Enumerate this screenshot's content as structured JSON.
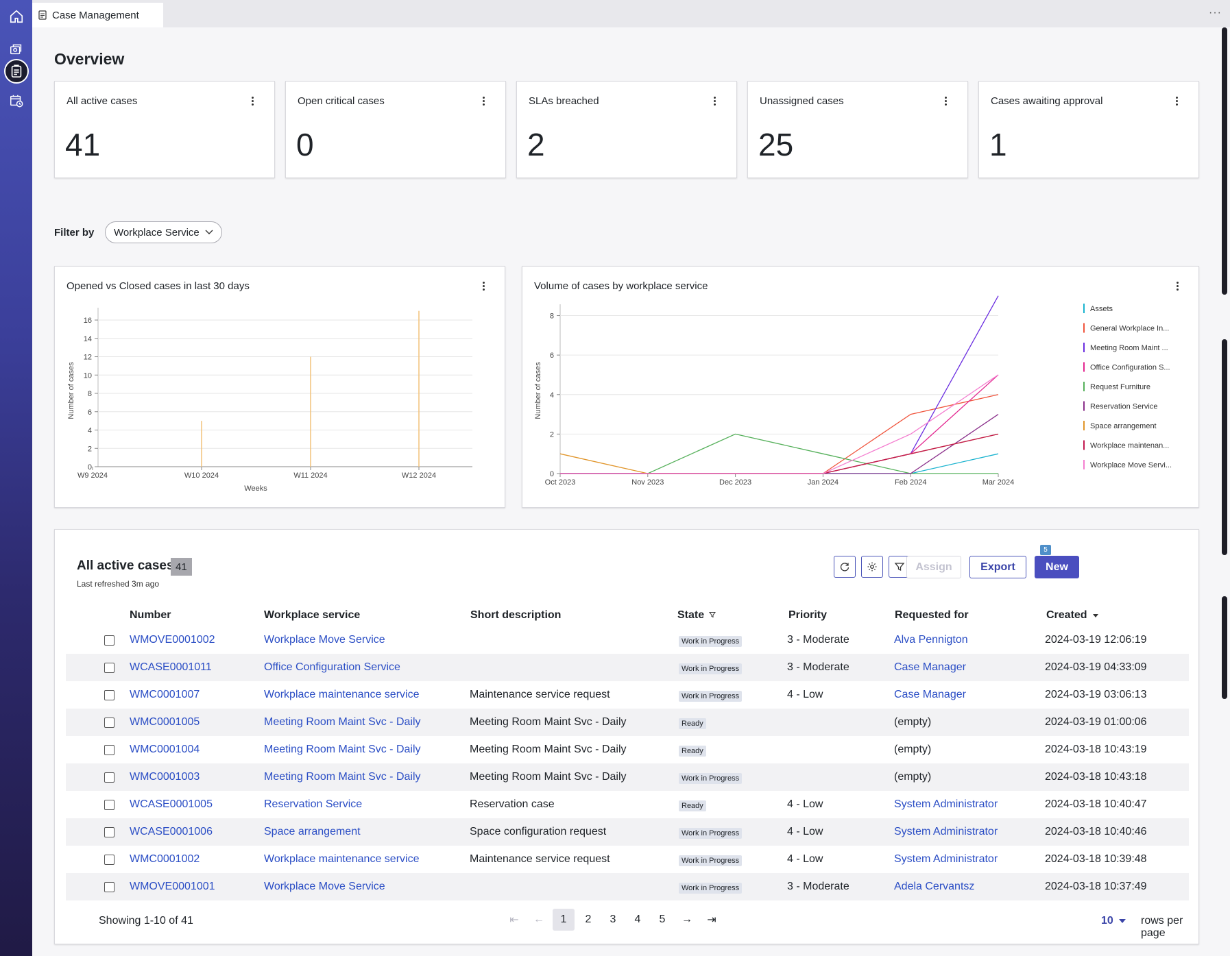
{
  "app": {
    "tab_title": "Case Management",
    "tab_more": "···"
  },
  "rail": {
    "items": [
      {
        "icon": "home-icon"
      },
      {
        "icon": "agent-workspace-icon"
      },
      {
        "icon": "clipboard-icon",
        "active": true
      },
      {
        "icon": "calendar-clock-icon"
      }
    ]
  },
  "page": {
    "title": "Overview"
  },
  "kpis": [
    {
      "title": "All active cases",
      "value": "41"
    },
    {
      "title": "Open critical cases",
      "value": "0"
    },
    {
      "title": "SLAs breached",
      "value": "2"
    },
    {
      "title": "Unassigned cases",
      "value": "25"
    },
    {
      "title": "Cases awaiting approval",
      "value": "1"
    }
  ],
  "filter": {
    "label": "Filter by",
    "selected": "Workplace Service"
  },
  "charts": {
    "opened_closed_title": "Opened vs Closed cases in last 30 days",
    "volume_title": "Volume of cases by workplace service"
  },
  "chart_data": [
    {
      "type": "bar",
      "title": "Opened vs Closed cases in last 30 days",
      "xlabel": "Weeks",
      "ylabel": "Number of cases",
      "categories": [
        "W9 2024",
        "W10 2024",
        "W11 2024",
        "W12 2024"
      ],
      "y_ticks": [
        "0",
        "2",
        "4",
        "6",
        "8",
        "10",
        "12",
        "14",
        "16"
      ],
      "ylim": [
        0,
        16.6
      ],
      "series": [
        {
          "values": [
            0,
            5,
            12,
            17
          ],
          "color": "#f2c27a"
        }
      ],
      "grid": true
    },
    {
      "type": "line",
      "title": "Volume of cases by workplace service",
      "xlabel": "",
      "ylabel": "Number of cases",
      "x": [
        "Oct 2023",
        "Nov 2023",
        "Dec 2023",
        "Jan 2024",
        "Feb 2024",
        "Mar 2024"
      ],
      "y_ticks": [
        "0",
        "2",
        "4",
        "6",
        "8"
      ],
      "ylim": [
        0,
        8.4
      ],
      "legend_position": "right",
      "grid": true,
      "series": [
        {
          "name": "Assets",
          "color": "#19b3cf",
          "values": [
            0,
            0,
            0,
            0,
            0,
            1
          ]
        },
        {
          "name": "General Workplace In...",
          "color": "#f0543c",
          "values": [
            0,
            0,
            0,
            0,
            3,
            4
          ]
        },
        {
          "name": "Meeting Room Maint ...",
          "color": "#6a2de0",
          "values": [
            0,
            0,
            0,
            0,
            1,
            9
          ]
        },
        {
          "name": "Office Configuration S...",
          "color": "#e3258f",
          "values": [
            0,
            0,
            0,
            0,
            1,
            5
          ]
        },
        {
          "name": "Request Furniture",
          "color": "#55b05a",
          "values": [
            0,
            0,
            2,
            1,
            0,
            0
          ]
        },
        {
          "name": "Reservation Service",
          "color": "#8a2f8a",
          "values": [
            0,
            0,
            0,
            0,
            0,
            3
          ]
        },
        {
          "name": "Space arrangement",
          "color": "#e1952a",
          "values": [
            1,
            0,
            0,
            0,
            1,
            2
          ]
        },
        {
          "name": "Workplace maintenan...",
          "color": "#c2184f",
          "values": [
            0,
            0,
            0,
            0,
            1,
            2
          ]
        },
        {
          "name": "Workplace Move Servi...",
          "color": "#f47fd0",
          "values": [
            0,
            0,
            0,
            0,
            2,
            5
          ]
        }
      ]
    }
  ],
  "table": {
    "title": "All active cases",
    "count": "41",
    "refreshed": "Last refreshed 3m ago",
    "filter_badge": "5",
    "buttons": {
      "assign": "Assign",
      "export": "Export",
      "new": "New"
    },
    "columns": [
      "Number",
      "Workplace service",
      "Short description",
      "State",
      "Priority",
      "Requested for",
      "Created"
    ],
    "rows": [
      {
        "number": "WMOVE0001002",
        "service": "Workplace Move Service",
        "desc": "",
        "state": "Work in Progress",
        "priority": "3 - Moderate",
        "requested": "Alva Pennigton",
        "requested_link": true,
        "created": "2024-03-19 12:06:19"
      },
      {
        "number": "WCASE0001011",
        "service": "Office Configuration Service",
        "desc": "",
        "state": "Work in Progress",
        "priority": "3 - Moderate",
        "requested": "Case Manager",
        "requested_link": true,
        "created": "2024-03-19 04:33:09"
      },
      {
        "number": "WMC0001007",
        "service": "Workplace maintenance service",
        "desc": "Maintenance service request",
        "state": "Work in Progress",
        "priority": "4 - Low",
        "requested": "Case Manager",
        "requested_link": true,
        "created": "2024-03-19 03:06:13"
      },
      {
        "number": "WMC0001005",
        "service": "Meeting Room Maint Svc - Daily",
        "desc": "Meeting Room Maint Svc - Daily",
        "state": "Ready",
        "priority": "",
        "requested": "(empty)",
        "requested_link": false,
        "created": "2024-03-19 01:00:06"
      },
      {
        "number": "WMC0001004",
        "service": "Meeting Room Maint Svc - Daily",
        "desc": "Meeting Room Maint Svc - Daily",
        "state": "Ready",
        "priority": "",
        "requested": "(empty)",
        "requested_link": false,
        "created": "2024-03-18 10:43:19"
      },
      {
        "number": "WMC0001003",
        "service": "Meeting Room Maint Svc - Daily",
        "desc": "Meeting Room Maint Svc - Daily",
        "state": "Work in Progress",
        "priority": "",
        "requested": "(empty)",
        "requested_link": false,
        "created": "2024-03-18 10:43:18"
      },
      {
        "number": "WCASE0001005",
        "service": "Reservation Service",
        "desc": "Reservation case",
        "state": "Ready",
        "priority": "4 - Low",
        "requested": "System Administrator",
        "requested_link": true,
        "created": "2024-03-18 10:40:47"
      },
      {
        "number": "WCASE0001006",
        "service": "Space arrangement",
        "desc": "Space configuration request",
        "state": "Work in Progress",
        "priority": "4 - Low",
        "requested": "System Administrator",
        "requested_link": true,
        "created": "2024-03-18 10:40:46"
      },
      {
        "number": "WMC0001002",
        "service": "Workplace maintenance service",
        "desc": "Maintenance service request",
        "state": "Work in Progress",
        "priority": "4 - Low",
        "requested": "System Administrator",
        "requested_link": true,
        "created": "2024-03-18 10:39:48"
      },
      {
        "number": "WMOVE0001001",
        "service": "Workplace Move Service",
        "desc": "",
        "state": "Work in Progress",
        "priority": "3 - Moderate",
        "requested": "Adela Cervantsz",
        "requested_link": true,
        "created": "2024-03-18 10:37:49"
      }
    ],
    "pager": {
      "info": "Showing 1-10 of 41",
      "pages": [
        "1",
        "2",
        "3",
        "4",
        "5"
      ],
      "current": "1",
      "rows_per_page_value": "10",
      "rows_per_page_label": "rows per page"
    }
  }
}
